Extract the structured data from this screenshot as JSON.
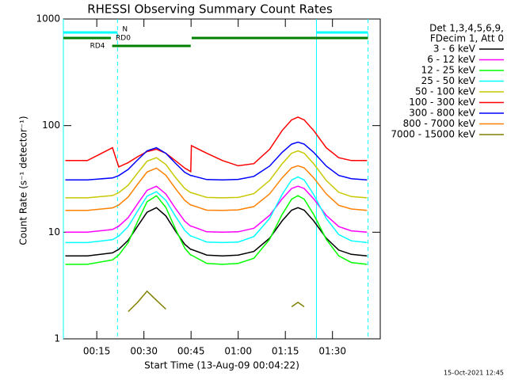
{
  "chart_data": {
    "type": "line",
    "title": "RHESSI Observing Summary Count Rates",
    "xlabel": "Start Time (13-Aug-09 00:04:22)",
    "ylabel": "Count Rate (s⁻¹ detector⁻¹)",
    "legend_header": [
      "Det 1,3,4,5,6,9,",
      "FDecim 1, Att 0"
    ],
    "footer": "15-Oct-2021 12:45",
    "log_y": true,
    "xlim": [
      4.37,
      105.2
    ],
    "ylim": [
      1,
      1000
    ],
    "xticks": [
      {
        "value": 15,
        "label": "00:15"
      },
      {
        "value": 30,
        "label": "00:30"
      },
      {
        "value": 45,
        "label": "00:45"
      },
      {
        "value": 60,
        "label": "01:00"
      },
      {
        "value": 75,
        "label": "01:15"
      },
      {
        "value": 90,
        "label": "01:30"
      }
    ],
    "yticks": [
      1,
      10,
      100,
      1000
    ],
    "x": [
      5,
      12,
      20,
      22,
      25,
      28,
      31,
      34,
      37,
      40,
      43,
      44.9,
      45.1,
      50,
      55,
      60,
      65,
      70,
      74,
      77,
      79,
      81,
      84,
      88,
      92,
      96,
      101
    ],
    "series": [
      {
        "name": "3 - 6 keV",
        "color": "#000000",
        "values": [
          6,
          6,
          6.4,
          6.9,
          8.4,
          11.4,
          15.4,
          17,
          14.2,
          10.3,
          7.7,
          6.9,
          6.9,
          6.1,
          6,
          6.1,
          6.6,
          8.8,
          12.8,
          16.1,
          17,
          16.1,
          12.8,
          8.8,
          6.8,
          6.2,
          6
        ]
      },
      {
        "name": "6 - 12 keV",
        "color": "#ff00ff",
        "values": [
          10,
          10,
          10.6,
          11.4,
          13.7,
          18.5,
          24.7,
          27,
          22.8,
          16.8,
          12.7,
          11.4,
          11.4,
          10.1,
          10,
          10.1,
          10.9,
          14.4,
          20.6,
          25.7,
          27,
          25.7,
          20.6,
          14.4,
          11.3,
          10.3,
          10
        ]
      },
      {
        "name": "12 - 25 keV",
        "color": "#00ff00",
        "values": [
          5,
          5,
          5.5,
          6.1,
          8,
          12.6,
          19.3,
          22,
          17.1,
          10.8,
          7.1,
          6.1,
          6.1,
          5.1,
          5,
          5.1,
          5.7,
          8.6,
          14.7,
          20.4,
          22,
          20.4,
          14.7,
          8.6,
          6,
          5.2,
          5
        ]
      },
      {
        "name": "25 - 50 keV",
        "color": "#00ffff",
        "values": [
          8,
          8,
          8.5,
          9.2,
          11.3,
          15.8,
          21.8,
          24,
          19.9,
          14.2,
          10.4,
          9.2,
          9.2,
          8.1,
          8,
          8.1,
          9.1,
          13.5,
          22.6,
          30.9,
          33,
          30.9,
          22.6,
          13.5,
          9.5,
          8.3,
          8
        ]
      },
      {
        "name": "50 - 100 keV",
        "color": "#c8c800",
        "values": [
          21,
          21,
          22.1,
          23.5,
          27.6,
          35.9,
          46.4,
          50,
          43.2,
          32.8,
          25.7,
          23.5,
          23.5,
          21.2,
          21,
          21.2,
          23,
          30.6,
          44,
          55,
          58,
          55,
          44,
          30.6,
          23.7,
          21.6,
          21
        ]
      },
      {
        "name": "100 - 300 keV",
        "color": "#ff0000",
        "values": [
          47,
          47,
          62,
          41,
          45,
          51,
          57,
          60,
          55,
          47,
          40,
          37,
          65,
          55,
          47,
          42,
          44,
          60,
          90,
          113,
          120,
          113,
          90,
          62,
          50,
          47,
          47
        ]
      },
      {
        "name": "300 - 800 keV",
        "color": "#0000ff",
        "values": [
          31,
          31,
          32.3,
          34,
          38.8,
          47.7,
          58,
          62,
          54.9,
          44.5,
          36.5,
          34,
          34,
          31.2,
          31,
          31.3,
          33.4,
          41.8,
          56.2,
          67,
          70,
          67,
          56.2,
          41.8,
          34.1,
          31.8,
          31
        ]
      },
      {
        "name": "800 - 7000 keV",
        "color": "#ff8000",
        "values": [
          16,
          16,
          16.9,
          18,
          21.4,
          28.2,
          36.7,
          40,
          34.2,
          25.8,
          19.9,
          18,
          18,
          16.1,
          16,
          16.2,
          17.4,
          22.9,
          32.4,
          40.2,
          42,
          40.2,
          32.4,
          22.9,
          17.9,
          16.5,
          16
        ]
      },
      {
        "name": "7000 - 15000 keV",
        "color": "#808000",
        "values": [
          null,
          null,
          null,
          null,
          1.8,
          2.2,
          2.8,
          2.3,
          1.9,
          null,
          null,
          null,
          null,
          null,
          null,
          null,
          null,
          null,
          null,
          2.0,
          2.2,
          2.0,
          null,
          null,
          null,
          null,
          null
        ]
      }
    ],
    "flag_bars": [
      {
        "label": "N",
        "color": "#00ffff",
        "spans": [
          [
            4.37,
            21.6
          ],
          [
            84.9,
            101.3
          ]
        ]
      },
      {
        "label": "RD0",
        "color": "#008000",
        "spans": [
          [
            4.37,
            19.5
          ],
          [
            45.2,
            101.3
          ]
        ]
      },
      {
        "label": "RD4",
        "color": "#008000",
        "spans": [
          [
            19.9,
            44.9
          ]
        ]
      }
    ],
    "vlines": [
      {
        "x": 4.37,
        "color": "#00ffff",
        "dashed": false
      },
      {
        "x": 21.6,
        "color": "#00ffff",
        "dashed": true
      },
      {
        "x": 84.9,
        "color": "#00ffff",
        "dashed": false
      },
      {
        "x": 101.3,
        "color": "#00ffff",
        "dashed": true
      }
    ]
  }
}
